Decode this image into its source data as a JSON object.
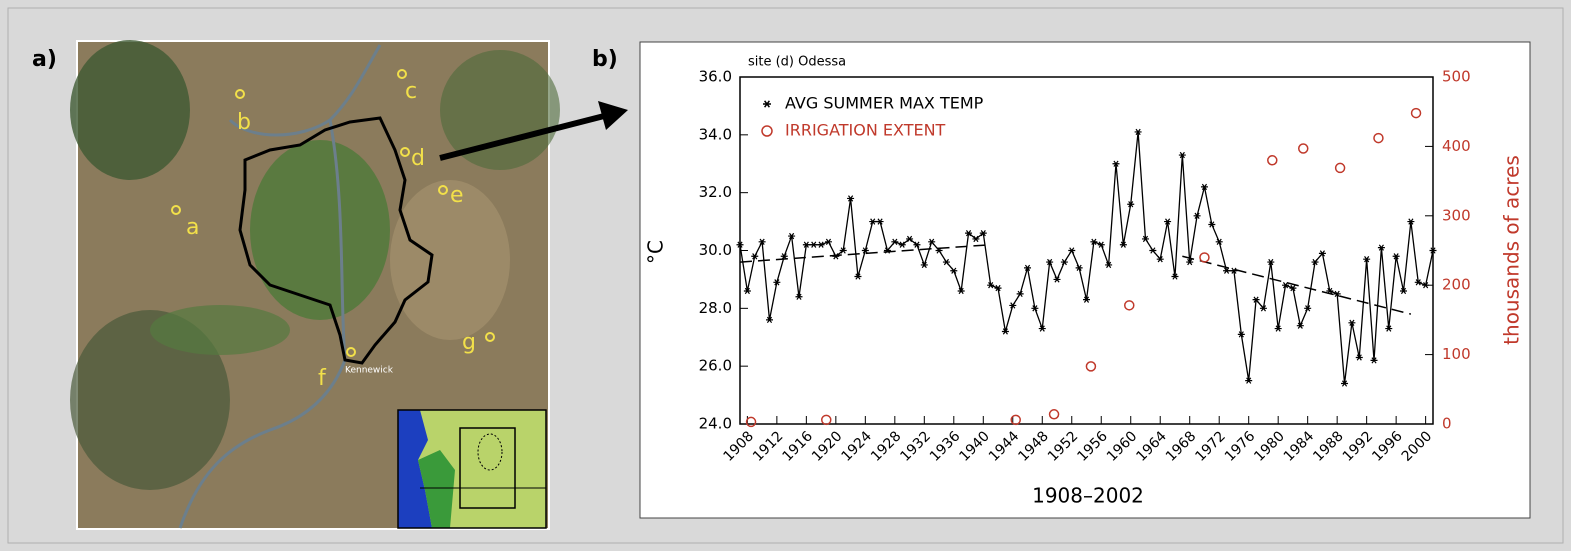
{
  "panel_labels": [
    "a)",
    "b)"
  ],
  "map": {
    "site_labels": [
      "a",
      "b",
      "c",
      "d",
      "e",
      "f",
      "g"
    ],
    "place_label": "Kennewick"
  },
  "chart_data": {
    "type": "line",
    "title": "site (d) Odessa",
    "x_label": "1908–2002",
    "y_label": "°C",
    "y2_label": "thousands of acres",
    "x": [
      1907,
      1908,
      1909,
      1910,
      1911,
      1912,
      1913,
      1914,
      1915,
      1916,
      1917,
      1918,
      1919,
      1920,
      1921,
      1922,
      1923,
      1924,
      1925,
      1926,
      1927,
      1928,
      1929,
      1930,
      1931,
      1932,
      1933,
      1934,
      1935,
      1936,
      1937,
      1938,
      1939,
      1940,
      1941,
      1942,
      1943,
      1944,
      1945,
      1946,
      1947,
      1948,
      1949,
      1950,
      1951,
      1952,
      1953,
      1954,
      1955,
      1956,
      1957,
      1958,
      1959,
      1960,
      1961,
      1962,
      1963,
      1964,
      1965,
      1966,
      1967,
      1968,
      1969,
      1970,
      1971,
      1972,
      1973,
      1974,
      1975,
      1976,
      1977,
      1978,
      1979,
      1980,
      1981,
      1982,
      1983,
      1984,
      1985,
      1986,
      1987,
      1988,
      1989,
      1990,
      1991,
      1992,
      1993,
      1994,
      1995,
      1996,
      1997,
      1998,
      1999,
      2000,
      2001
    ],
    "series": [
      {
        "name": "AVG SUMMER MAX TEMP",
        "color": "#000000",
        "marker": "asterisk",
        "values": [
          30.2,
          28.6,
          29.8,
          30.3,
          27.6,
          28.9,
          29.8,
          30.5,
          28.4,
          30.2,
          30.2,
          30.2,
          30.3,
          29.8,
          30.0,
          31.8,
          29.1,
          30.0,
          31.0,
          31.0,
          30.0,
          30.3,
          30.2,
          30.4,
          30.2,
          29.5,
          30.3,
          30.0,
          29.6,
          29.3,
          28.6,
          30.6,
          30.4,
          30.6,
          28.8,
          28.7,
          27.2,
          28.1,
          28.5,
          29.4,
          28.0,
          27.3,
          29.6,
          29.0,
          29.6,
          30.0,
          29.4,
          28.3,
          30.3,
          30.2,
          29.5,
          33.0,
          30.2,
          31.6,
          34.1,
          30.4,
          30.0,
          29.7,
          31.0,
          29.1,
          33.3,
          29.6,
          31.2,
          32.2,
          30.9,
          30.3,
          29.3,
          29.3,
          27.1,
          25.5,
          28.3,
          28.0,
          29.6,
          27.3,
          28.8,
          28.7,
          27.4,
          28.0,
          29.6,
          29.9,
          28.6,
          28.5,
          25.4,
          27.5,
          26.3,
          29.7,
          26.2,
          30.1,
          27.3,
          29.8,
          28.6,
          31.0,
          28.9,
          28.8,
          30.0
        ]
      },
      {
        "name": "IRRIGATION EXTENT",
        "color": "#c0392b",
        "marker": "circle",
        "axis": "y2",
        "x": [
          1908.5,
          1918.7,
          1944.4,
          1949.6,
          1954.6,
          1959.8,
          1970,
          1979.2,
          1983.4,
          1988.4,
          1993.6,
          1998.7
        ],
        "values": [
          3,
          6,
          6,
          14,
          83,
          171,
          240,
          380,
          397,
          369,
          412,
          448
        ]
      }
    ],
    "trend_lines": [
      {
        "x": [
          1907,
          1941
        ],
        "values": [
          29.6,
          30.2
        ]
      },
      {
        "x": [
          1967,
          1998
        ],
        "values": [
          29.8,
          27.8
        ]
      }
    ],
    "xlim": [
      1907,
      2001
    ],
    "xticks": [
      1908,
      1912,
      1916,
      1920,
      1924,
      1928,
      1932,
      1936,
      1940,
      1944,
      1948,
      1952,
      1956,
      1960,
      1964,
      1968,
      1972,
      1976,
      1980,
      1984,
      1988,
      1992,
      1996,
      2000
    ],
    "ylim": [
      24,
      36
    ],
    "yticks": [
      {
        "value": 24,
        "label": "24.0"
      },
      {
        "value": 26,
        "label": "26.0"
      },
      {
        "value": 28,
        "label": "28.0"
      },
      {
        "value": 30,
        "label": "30.0"
      },
      {
        "value": 32,
        "label": "32.0"
      },
      {
        "value": 34,
        "label": "34.0"
      },
      {
        "value": 36,
        "label": "36.0"
      }
    ],
    "y2lim": [
      0,
      500
    ],
    "y2ticks": [
      0,
      100,
      200,
      300,
      400,
      500
    ]
  }
}
